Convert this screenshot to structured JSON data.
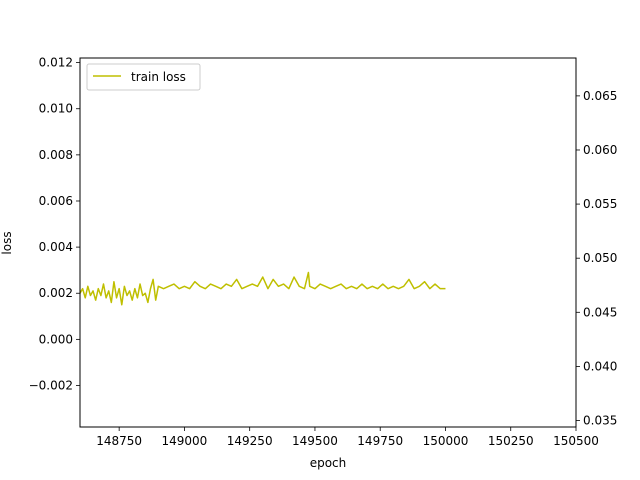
{
  "chart_data": {
    "type": "line",
    "title": "",
    "xlabel": "epoch",
    "ylabel": "loss",
    "xlim": [
      148600,
      150500
    ],
    "ylim": [
      -0.0038,
      0.0122
    ],
    "y2lim": [
      0.0344,
      0.0685
    ],
    "x_ticks": [
      148750,
      149000,
      149250,
      149500,
      149750,
      150000,
      150250,
      150500
    ],
    "x_tick_labels": [
      "148750",
      "149000",
      "149250",
      "149500",
      "149750",
      "150000",
      "150250",
      "150500"
    ],
    "y_ticks": [
      -0.002,
      0.0,
      0.002,
      0.004,
      0.006,
      0.008,
      0.01,
      0.012
    ],
    "y_tick_labels": [
      "−0.002",
      "0.000",
      "0.002",
      "0.004",
      "0.006",
      "0.008",
      "0.010",
      "0.012"
    ],
    "y2_ticks": [
      0.035,
      0.04,
      0.045,
      0.05,
      0.055,
      0.06,
      0.065
    ],
    "y2_tick_labels": [
      "0.035",
      "0.040",
      "0.045",
      "0.050",
      "0.055",
      "0.060",
      "0.065"
    ],
    "grid": false,
    "legend": {
      "position": "top-left"
    },
    "series": [
      {
        "name": "train loss",
        "color": "#bfbf00",
        "x": [
          148600,
          148610,
          148620,
          148630,
          148640,
          148650,
          148660,
          148670,
          148680,
          148690,
          148700,
          148710,
          148720,
          148730,
          148740,
          148750,
          148760,
          148770,
          148780,
          148790,
          148800,
          148810,
          148820,
          148830,
          148840,
          148850,
          148860,
          148870,
          148880,
          148890,
          148900,
          148920,
          148940,
          148960,
          148980,
          149000,
          149020,
          149040,
          149060,
          149080,
          149100,
          149120,
          149140,
          149160,
          149180,
          149200,
          149220,
          149240,
          149260,
          149280,
          149300,
          149320,
          149340,
          149360,
          149380,
          149400,
          149420,
          149440,
          149460,
          149475,
          149480,
          149500,
          149520,
          149540,
          149560,
          149580,
          149600,
          149620,
          149640,
          149660,
          149680,
          149700,
          149720,
          149740,
          149760,
          149780,
          149800,
          149820,
          149840,
          149860,
          149880,
          149900,
          149920,
          149940,
          149960,
          149980,
          150000
        ],
        "values": [
          0.002,
          0.0022,
          0.0018,
          0.0023,
          0.0019,
          0.0021,
          0.0017,
          0.0022,
          0.0019,
          0.0024,
          0.0018,
          0.0021,
          0.0016,
          0.0025,
          0.0018,
          0.0022,
          0.0015,
          0.0023,
          0.0019,
          0.0021,
          0.0017,
          0.0022,
          0.0018,
          0.0024,
          0.0019,
          0.002,
          0.0016,
          0.0022,
          0.0026,
          0.0017,
          0.0023,
          0.0022,
          0.0023,
          0.0024,
          0.0022,
          0.0023,
          0.0022,
          0.0025,
          0.0023,
          0.0022,
          0.0024,
          0.0023,
          0.0022,
          0.0024,
          0.0023,
          0.0026,
          0.0022,
          0.0023,
          0.0024,
          0.0023,
          0.0027,
          0.0022,
          0.0026,
          0.0023,
          0.0024,
          0.0022,
          0.0027,
          0.0023,
          0.0022,
          0.0029,
          0.0023,
          0.0022,
          0.0024,
          0.0023,
          0.0022,
          0.0023,
          0.0024,
          0.0022,
          0.0023,
          0.0022,
          0.0024,
          0.0022,
          0.0023,
          0.0022,
          0.0024,
          0.0022,
          0.0023,
          0.0022,
          0.0023,
          0.0026,
          0.0022,
          0.0023,
          0.0025,
          0.0022,
          0.0024,
          0.0022,
          0.0022
        ]
      }
    ]
  }
}
